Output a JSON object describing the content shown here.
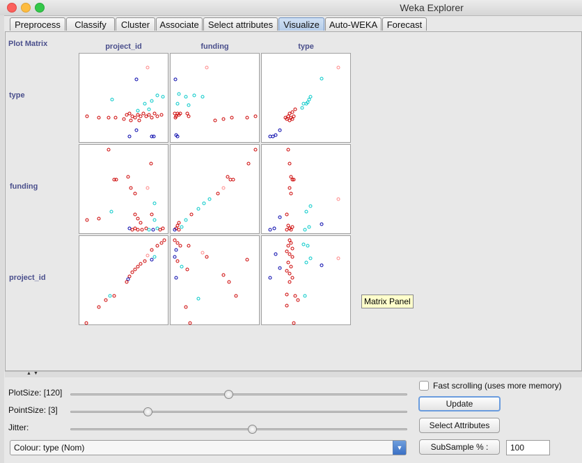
{
  "window": {
    "title": "Weka Explorer"
  },
  "tabs": [
    {
      "label": "Preprocess"
    },
    {
      "label": "Classify"
    },
    {
      "label": "Cluster"
    },
    {
      "label": "Associate"
    },
    {
      "label": "Select attributes"
    },
    {
      "label": "Visualize",
      "selected": true
    },
    {
      "label": "Auto-WEKA"
    },
    {
      "label": "Forecast"
    }
  ],
  "plot_matrix": {
    "title": "Plot Matrix",
    "columns": [
      "project_id",
      "funding",
      "type"
    ],
    "rows": [
      "type",
      "funding",
      "project_id"
    ],
    "tooltip": "Matrix Panel",
    "colors": {
      "red": "#cc0000",
      "cyan": "#00c8c8",
      "pink": "#ff8888",
      "blue": "#0000aa"
    }
  },
  "controls": {
    "plot_size_label": "PlotSize: [120]",
    "point_size_label": "PointSize: [3]",
    "jitter_label": "Jitter:",
    "plot_size_level": 0.47,
    "point_size_level": 0.23,
    "jitter_level": 0.54,
    "colour_select": "Colour: type  (Nom)",
    "fast_scrolling_label": "Fast scrolling (uses more memory)",
    "fast_scrolling_checked": false,
    "update_button": "Update",
    "select_attributes_button": "Select Attributes",
    "subsample_button": "SubSample % :",
    "subsample_value": "100"
  }
}
